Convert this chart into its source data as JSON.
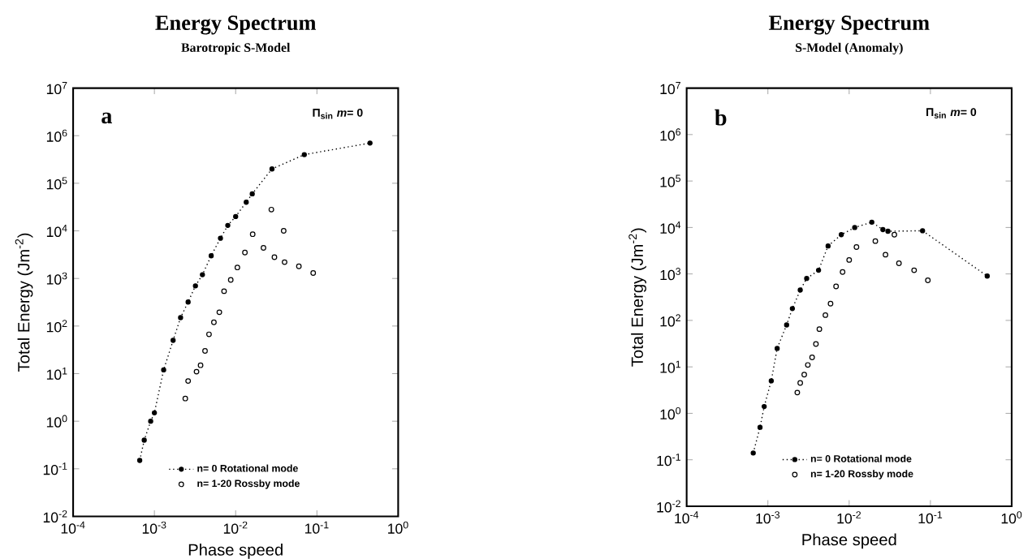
{
  "chart_data": [
    {
      "type": "scatter",
      "title": "Energy Spectrum",
      "subtitle": "Barotropic S-Model",
      "xlabel": "Phase speed",
      "ylabel": "Total Energy (Jm$^{-2}$)",
      "log": "xy",
      "grid": false,
      "legend": "bottom",
      "xlim": [
        0.0001,
        1
      ],
      "ylim": [
        0.01,
        10000000
      ],
      "xticks": [
        {
          "value": 0.0001,
          "label": "10$^{-4}$"
        },
        {
          "value": 0.001,
          "label": "10$^{-3}$"
        },
        {
          "value": 0.01,
          "label": "10$^{-2}$"
        },
        {
          "value": 0.1,
          "label": "10$^{-1}$"
        },
        {
          "value": 1,
          "label": "10$^{0}$"
        }
      ],
      "yticks": [
        {
          "value": 0.01,
          "label": "10$^{-2}$"
        },
        {
          "value": 0.1,
          "label": "10$^{-1}$"
        },
        {
          "value": 1,
          "label": "10$^{0}$"
        },
        {
          "value": 10,
          "label": "10$^{1}$"
        },
        {
          "value": 100,
          "label": "10$^{2}$"
        },
        {
          "value": 1000,
          "label": "10$^{3}$"
        },
        {
          "value": 10000,
          "label": "10$^{4}$"
        },
        {
          "value": 100000,
          "label": "10$^{5}$"
        },
        {
          "value": 1000000,
          "label": "10$^{6}$"
        },
        {
          "value": 10000000,
          "label": "10$^{7}$"
        }
      ],
      "annotations": [
        "a",
        "Π$_{sin}$ *m*= 0"
      ],
      "series": [
        {
          "name": "n= 0    Rotational mode",
          "type": "line",
          "color": "#000000",
          "marker": "circle",
          "line_style": "dotted",
          "x": [
            0.00066,
            0.00075,
            0.0009,
            0.001,
            0.0013,
            0.0017,
            0.0021,
            0.0026,
            0.0032,
            0.0039,
            0.005,
            0.0065,
            0.008,
            0.01,
            0.0135,
            0.016,
            0.028,
            0.07,
            0.45
          ],
          "values": [
            0.15,
            0.4,
            1,
            1.5,
            12,
            50,
            150,
            320,
            700,
            1200,
            3000,
            7000,
            13000,
            20000,
            40000,
            60000,
            200000,
            400000,
            700000
          ]
        },
        {
          "name": "n= 1-20  Rossby mode",
          "type": "scatter",
          "color": "#000000",
          "marker": "circle",
          "x": [
            0.09,
            0.06,
            0.04,
            0.03,
            0.039,
            0.0275,
            0.022,
            0.0162,
            0.013,
            0.0105,
            0.0087,
            0.0072,
            0.0063,
            0.0054,
            0.0047,
            0.0042,
            0.0037,
            0.0033,
            0.0026,
            0.0024
          ],
          "values": [
            1300,
            1800,
            2200,
            2800,
            10000,
            28000,
            4400,
            8500,
            3500,
            1700,
            930,
            540,
            195,
            120,
            67,
            30,
            15,
            11,
            7,
            3
          ]
        }
      ]
    },
    {
      "type": "scatter",
      "title": "Energy Spectrum",
      "subtitle": "S-Model (Anomaly)",
      "xlabel": "Phase speed",
      "ylabel": "Total Energy (Jm$^{-2}$)",
      "log": "xy",
      "grid": false,
      "legend": "bottom",
      "xlim": [
        0.0001,
        1
      ],
      "ylim": [
        0.01,
        10000000
      ],
      "xticks": [
        {
          "value": 0.0001,
          "label": "10$^{-4}$"
        },
        {
          "value": 0.001,
          "label": "10$^{-3}$"
        },
        {
          "value": 0.01,
          "label": "10$^{-2}$"
        },
        {
          "value": 0.1,
          "label": "10$^{-1}$"
        },
        {
          "value": 1,
          "label": "10$^{0}$"
        }
      ],
      "yticks": [
        {
          "value": 0.01,
          "label": "10$^{-2}$"
        },
        {
          "value": 0.1,
          "label": "10$^{-1}$"
        },
        {
          "value": 1,
          "label": "10$^{0}$"
        },
        {
          "value": 10,
          "label": "10$^{1}$"
        },
        {
          "value": 100,
          "label": "10$^{2}$"
        },
        {
          "value": 1000,
          "label": "10$^{3}$"
        },
        {
          "value": 10000,
          "label": "10$^{4}$"
        },
        {
          "value": 100000,
          "label": "10$^{5}$"
        },
        {
          "value": 1000000,
          "label": "10$^{6}$"
        },
        {
          "value": 10000000,
          "label": "10$^{7}$"
        }
      ],
      "annotations": [
        "b",
        "Π$_{sin}$ *m*= 0"
      ],
      "series": [
        {
          "name": "n= 0    Rotational mode",
          "type": "line",
          "color": "#000000",
          "marker": "circle",
          "line_style": "dotted",
          "x": [
            0.00066,
            0.0008,
            0.0009,
            0.0011,
            0.0013,
            0.0017,
            0.002,
            0.0025,
            0.003,
            0.0042,
            0.0055,
            0.008,
            0.0117,
            0.019,
            0.026,
            0.03,
            0.08,
            0.5
          ],
          "values": [
            0.14,
            0.5,
            1.4,
            5,
            25,
            80,
            180,
            450,
            800,
            1200,
            4000,
            7000,
            10000,
            13000,
            9000,
            8300,
            8500,
            900
          ]
        },
        {
          "name": "n= 1-20  Rossby mode",
          "type": "scatter",
          "color": "#000000",
          "marker": "circle",
          "x": [
            0.093,
            0.063,
            0.041,
            0.028,
            0.021,
            0.036,
            0.0123,
            0.01,
            0.0083,
            0.0069,
            0.0059,
            0.0051,
            0.0043,
            0.0039,
            0.0035,
            0.0031,
            0.0028,
            0.0025,
            0.0023
          ],
          "values": [
            730,
            1200,
            1700,
            2600,
            5100,
            7000,
            3800,
            2000,
            1100,
            540,
            230,
            130,
            65,
            31,
            16,
            11,
            6.8,
            4.5,
            2.8
          ]
        }
      ]
    }
  ]
}
